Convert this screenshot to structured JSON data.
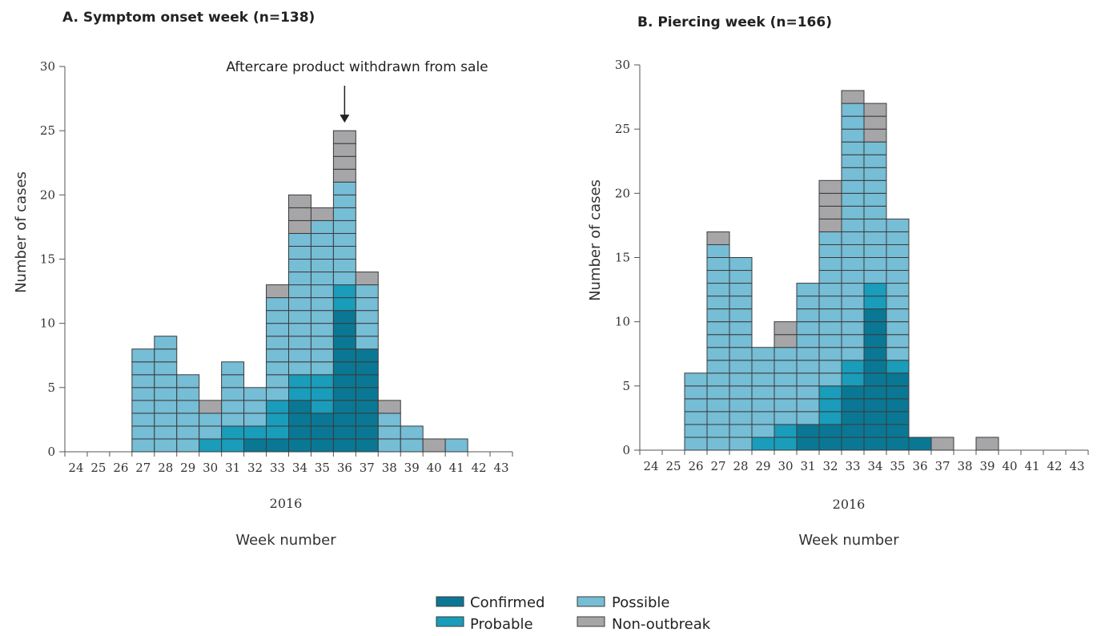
{
  "colors": {
    "Confirmed": "#0a7894",
    "Probable": "#1a9cbb",
    "Possible": "#76bdd6",
    "Non-outbreak": "#a6a6a8",
    "cell_border": "#3b3b3b"
  },
  "legend": {
    "items": [
      "Confirmed",
      "Probable",
      "Possible",
      "Non-outbreak"
    ]
  },
  "chart_data": [
    {
      "type": "bar",
      "stacked": true,
      "title": "A. Symptom onset week (n=138)",
      "xlabel": "Week number",
      "year_label": "2016",
      "ylabel": "Number of cases",
      "ylim": [
        0,
        30
      ],
      "yticks": [
        0,
        5,
        10,
        15,
        20,
        25,
        30
      ],
      "categories": [
        "24",
        "25",
        "26",
        "27",
        "28",
        "29",
        "30",
        "31",
        "32",
        "33",
        "34",
        "35",
        "36",
        "37",
        "38",
        "39",
        "40",
        "41",
        "42",
        "43"
      ],
      "series": [
        {
          "name": "Confirmed",
          "values": [
            0,
            0,
            0,
            0,
            0,
            0,
            0,
            0,
            1,
            1,
            4,
            3,
            11,
            8,
            0,
            0,
            0,
            0,
            0,
            0
          ]
        },
        {
          "name": "Probable",
          "values": [
            0,
            0,
            0,
            0,
            0,
            0,
            1,
            2,
            1,
            3,
            2,
            3,
            2,
            0,
            0,
            0,
            0,
            0,
            0,
            0
          ]
        },
        {
          "name": "Possible",
          "values": [
            0,
            0,
            0,
            8,
            9,
            6,
            2,
            5,
            3,
            8,
            11,
            12,
            8,
            5,
            3,
            2,
            0,
            1,
            0,
            0
          ]
        },
        {
          "name": "Non-outbreak",
          "values": [
            0,
            0,
            0,
            0,
            0,
            0,
            1,
            0,
            0,
            1,
            3,
            1,
            4,
            1,
            1,
            0,
            1,
            0,
            0,
            0
          ]
        }
      ],
      "annotation": {
        "text": "Aftercare product withdrawn from sale",
        "category": "36"
      }
    },
    {
      "type": "bar",
      "stacked": true,
      "title": "B. Piercing week (n=166)",
      "xlabel": "Week number",
      "year_label": "2016",
      "ylabel": "Number of cases",
      "ylim": [
        0,
        30
      ],
      "yticks": [
        0,
        5,
        10,
        15,
        20,
        25,
        30
      ],
      "categories": [
        "24",
        "25",
        "26",
        "27",
        "28",
        "29",
        "30",
        "31",
        "32",
        "33",
        "34",
        "35",
        "36",
        "37",
        "38",
        "39",
        "40",
        "41",
        "42",
        "43"
      ],
      "series": [
        {
          "name": "Confirmed",
          "values": [
            0,
            0,
            0,
            0,
            0,
            0,
            0,
            2,
            2,
            5,
            11,
            6,
            1,
            0,
            0,
            0,
            0,
            0,
            0,
            0
          ]
        },
        {
          "name": "Probable",
          "values": [
            0,
            0,
            0,
            0,
            0,
            1,
            2,
            0,
            3,
            2,
            2,
            1,
            0,
            0,
            0,
            0,
            0,
            0,
            0,
            0
          ]
        },
        {
          "name": "Possible",
          "values": [
            0,
            0,
            6,
            16,
            15,
            7,
            6,
            11,
            12,
            20,
            11,
            11,
            0,
            0,
            0,
            0,
            0,
            0,
            0,
            0
          ]
        },
        {
          "name": "Non-outbreak",
          "values": [
            0,
            0,
            0,
            1,
            0,
            0,
            2,
            0,
            4,
            1,
            3,
            0,
            0,
            1,
            0,
            1,
            0,
            0,
            0,
            0
          ]
        }
      ]
    }
  ]
}
